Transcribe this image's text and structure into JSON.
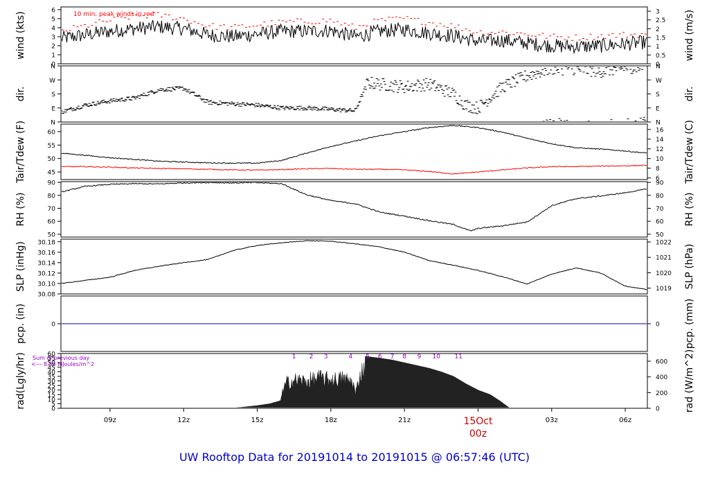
{
  "chart_data": [
    {
      "type": "line",
      "panel": "wind",
      "ylabel": "wind (kts)",
      "ylabel_right": "wind (m/s)",
      "ylim": [
        0,
        6.3
      ],
      "ticks_left": [
        "0",
        "1",
        "2",
        "3",
        "4",
        "5",
        "6"
      ],
      "ticks_right": [
        "0",
        "0.5",
        "1",
        "1.5",
        "2",
        "2.5",
        "3"
      ],
      "annotation": "10 min. peak winds in red",
      "series": [
        {
          "color": "#000000",
          "x": [
            7,
            8,
            9,
            10,
            11,
            12,
            13,
            14,
            15,
            16,
            17,
            18,
            19,
            20,
            21,
            22,
            23,
            24,
            25,
            26,
            27,
            28,
            29,
            30,
            30.9
          ],
          "values": [
            2.8,
            3.2,
            3.6,
            3.9,
            4.1,
            3.9,
            3.2,
            3.0,
            3.3,
            3.6,
            3.6,
            3.7,
            3.0,
            3.6,
            3.8,
            3.4,
            3.1,
            2.5,
            2.6,
            2.3,
            2.0,
            1.9,
            2.0,
            2.2,
            2.4
          ]
        },
        {
          "color": "#ff0000",
          "x": [
            7,
            8,
            9,
            10,
            11,
            12,
            13,
            14,
            15,
            16,
            17,
            18,
            19,
            20,
            21,
            22,
            23,
            24,
            25,
            26,
            27,
            28,
            29,
            30,
            30.9
          ],
          "values": [
            3.6,
            4.2,
            4.8,
            5.3,
            5.4,
            5.0,
            4.2,
            4.0,
            4.3,
            4.6,
            4.7,
            4.8,
            4.0,
            4.8,
            5.0,
            4.6,
            4.2,
            3.5,
            3.5,
            3.3,
            3.0,
            2.9,
            3.1,
            3.2,
            3.3
          ]
        }
      ]
    },
    {
      "type": "scatter",
      "panel": "dir",
      "ylabel": "dir.",
      "ylabel_right": "dir.",
      "ylim": [
        0,
        4
      ],
      "ticks_left": [
        "N",
        "E",
        "S",
        "W",
        "N"
      ],
      "ticks_right": [
        "N",
        "E",
        "S",
        "W",
        "N"
      ],
      "series": [
        {
          "color": "#000000",
          "x": [
            7,
            8,
            9,
            10,
            11,
            12,
            13,
            14,
            15,
            16,
            17,
            18,
            19,
            19.5,
            20,
            21,
            22,
            23,
            23.5,
            24,
            25,
            26,
            27,
            28,
            29,
            30,
            30.9
          ],
          "values": [
            0.7,
            1.2,
            1.5,
            1.7,
            2.3,
            2.4,
            1.4,
            1.3,
            1.2,
            1.0,
            1.0,
            0.9,
            0.8,
            2.8,
            2.7,
            2.5,
            2.7,
            2.0,
            1.2,
            1.0,
            2.5,
            3.3,
            3.8,
            3.8,
            3.6,
            3.9,
            3.9
          ]
        }
      ]
    },
    {
      "type": "line",
      "panel": "temperature",
      "ylabel": "Tair/Tdew (F)",
      "ylabel_right": "Tair/Tdew (C)",
      "ylim": [
        42.2,
        62.8
      ],
      "ticks_left": [
        "45",
        "50",
        "55",
        "60"
      ],
      "ticks_right": [
        "6",
        "8",
        "10",
        "12",
        "14",
        "16"
      ],
      "series": [
        {
          "color": "#000000",
          "x": [
            7,
            8,
            9,
            10,
            11,
            12,
            13,
            14,
            15,
            16,
            17,
            18,
            19,
            20,
            21,
            22,
            23,
            24,
            25,
            26,
            27,
            28,
            29,
            30,
            30.9
          ],
          "values": [
            52.0,
            51.2,
            50.3,
            49.7,
            49.0,
            48.7,
            48.4,
            48.3,
            48.3,
            49.3,
            52.0,
            54.5,
            56.5,
            58.5,
            60.0,
            61.5,
            62.3,
            61.5,
            59.8,
            57.5,
            55.5,
            54.0,
            53.5,
            52.8,
            52.0
          ]
        },
        {
          "color": "#ff0000",
          "x": [
            7,
            8,
            9,
            10,
            11,
            12,
            13,
            14,
            15,
            16,
            17,
            18,
            19,
            20,
            21,
            22,
            23,
            24,
            25,
            26,
            27,
            28,
            29,
            30,
            30.9
          ],
          "values": [
            47.0,
            47.0,
            46.8,
            46.5,
            46.3,
            46.2,
            46.0,
            45.8,
            45.7,
            45.9,
            46.2,
            46.3,
            46.0,
            46.0,
            45.8,
            45.2,
            44.3,
            45.0,
            45.8,
            46.5,
            47.0,
            47.0,
            47.2,
            47.3,
            47.5
          ]
        }
      ]
    },
    {
      "type": "line",
      "panel": "rh",
      "ylabel": "RH (%)",
      "ylabel_right": "RH (%)",
      "ylim": [
        47.8,
        90.6
      ],
      "ticks_left": [
        "50",
        "60",
        "70",
        "80",
        "90"
      ],
      "ticks_right": [
        "50",
        "60",
        "70",
        "80",
        "90"
      ],
      "series": [
        {
          "color": "#000000",
          "x": [
            7,
            8,
            9,
            10,
            11,
            12,
            13,
            14,
            15,
            16,
            17,
            18,
            19,
            20,
            21,
            22,
            23,
            23.7,
            24,
            25,
            26,
            27,
            28,
            29,
            30,
            30.9
          ],
          "values": [
            82.5,
            87.0,
            88.5,
            89.0,
            88.8,
            89.6,
            89.9,
            89.6,
            89.8,
            89.0,
            80.5,
            76.0,
            73.5,
            67.0,
            64.0,
            60.5,
            57.5,
            52.5,
            54.5,
            56.5,
            59.5,
            72.0,
            77.5,
            79.5,
            82.0,
            85.0
          ]
        }
      ]
    },
    {
      "type": "line",
      "panel": "slp",
      "ylabel": "SLP (inHg)",
      "ylabel_right": "SLP (hPa)",
      "ylim": [
        30.08,
        30.185
      ],
      "ticks_left": [
        "30.08",
        "30.10",
        "30.12",
        "30.14",
        "30.16",
        "30.18"
      ],
      "ticks_right": [
        "1019",
        "1020",
        "1021",
        "1022"
      ],
      "series": [
        {
          "color": "#000000",
          "x": [
            7,
            8,
            9,
            10,
            11,
            12,
            13,
            14,
            15,
            16,
            17,
            18,
            19,
            20,
            21,
            22,
            23,
            24,
            25,
            26,
            27,
            28,
            29,
            30,
            30.9
          ],
          "values": [
            30.1,
            30.106,
            30.112,
            30.125,
            30.133,
            30.14,
            30.146,
            30.163,
            30.173,
            30.178,
            30.182,
            30.181,
            30.176,
            30.17,
            30.16,
            30.144,
            30.135,
            30.125,
            30.113,
            30.099,
            30.118,
            30.13,
            30.12,
            30.095,
            30.088
          ]
        }
      ]
    },
    {
      "type": "line",
      "panel": "pcp",
      "ylabel": "pcp. (in)",
      "ylabel_right": "pcp. (mm)",
      "ylim": [
        -1,
        1
      ],
      "ticks_left": [
        "0"
      ],
      "ticks_right": [
        "0"
      ],
      "series": [
        {
          "color": "#0000cc",
          "x": [
            7,
            30.9
          ],
          "values": [
            0,
            0
          ]
        }
      ]
    },
    {
      "type": "area",
      "panel": "rad",
      "ylabel": "rad(Lgly/hr)",
      "ylabel_right": "rad (W/m^2)",
      "ylim": [
        0,
        60
      ],
      "ticks_left": [
        "0",
        "5",
        "10",
        "15",
        "20",
        "25",
        "30",
        "35",
        "40",
        "45",
        "50",
        "55",
        "60"
      ],
      "ticks_right": [
        "0",
        "200",
        "400",
        "600"
      ],
      "annotation_1": "Sum of previous day",
      "annotation_2": "<--- 8.56 MJoules/m^2",
      "hour_marks": [
        "1",
        "2",
        "3",
        "4",
        "5",
        "6",
        "7",
        "8",
        "9",
        "10",
        "11"
      ],
      "hour_marks_x": [
        16.5,
        17.2,
        17.8,
        18.8,
        19.5,
        20.0,
        20.5,
        21.0,
        21.6,
        22.3,
        23.2
      ],
      "series": [
        {
          "color": "#222222",
          "x": [
            7,
            12,
            13,
            13.9,
            14.3,
            15.0,
            15.5,
            15.9,
            16.0,
            16.2,
            16.6,
            17.0,
            17.5,
            18.0,
            18.5,
            18.9,
            19.0,
            19.2,
            19.3,
            19.4,
            20.0,
            20.5,
            21.0,
            21.5,
            22.0,
            22.5,
            23.0,
            23.5,
            24.0,
            24.5,
            24.9,
            25.3,
            30.9
          ],
          "values": [
            0,
            0,
            0,
            0,
            1,
            3,
            5,
            8,
            20,
            36,
            40,
            38,
            43,
            40,
            42,
            37,
            20,
            48,
            55,
            57,
            55,
            53,
            50,
            47,
            44,
            40,
            35,
            27,
            20,
            15,
            8,
            0,
            0
          ]
        }
      ]
    },
    {
      "type": "time_axis",
      "x_ticks": [
        9,
        12,
        15,
        18,
        21,
        24,
        27,
        30
      ],
      "x_tick_labels": [
        "09z",
        "12z",
        "15z",
        "18z",
        "21z",
        "",
        "03z",
        "06z"
      ],
      "date_marker": "15Oct",
      "date_marker_sub": "00z",
      "footer": "UW Rooftop Data for 20191014  to  20191015 @ 06:57:46  (UTC)"
    }
  ]
}
